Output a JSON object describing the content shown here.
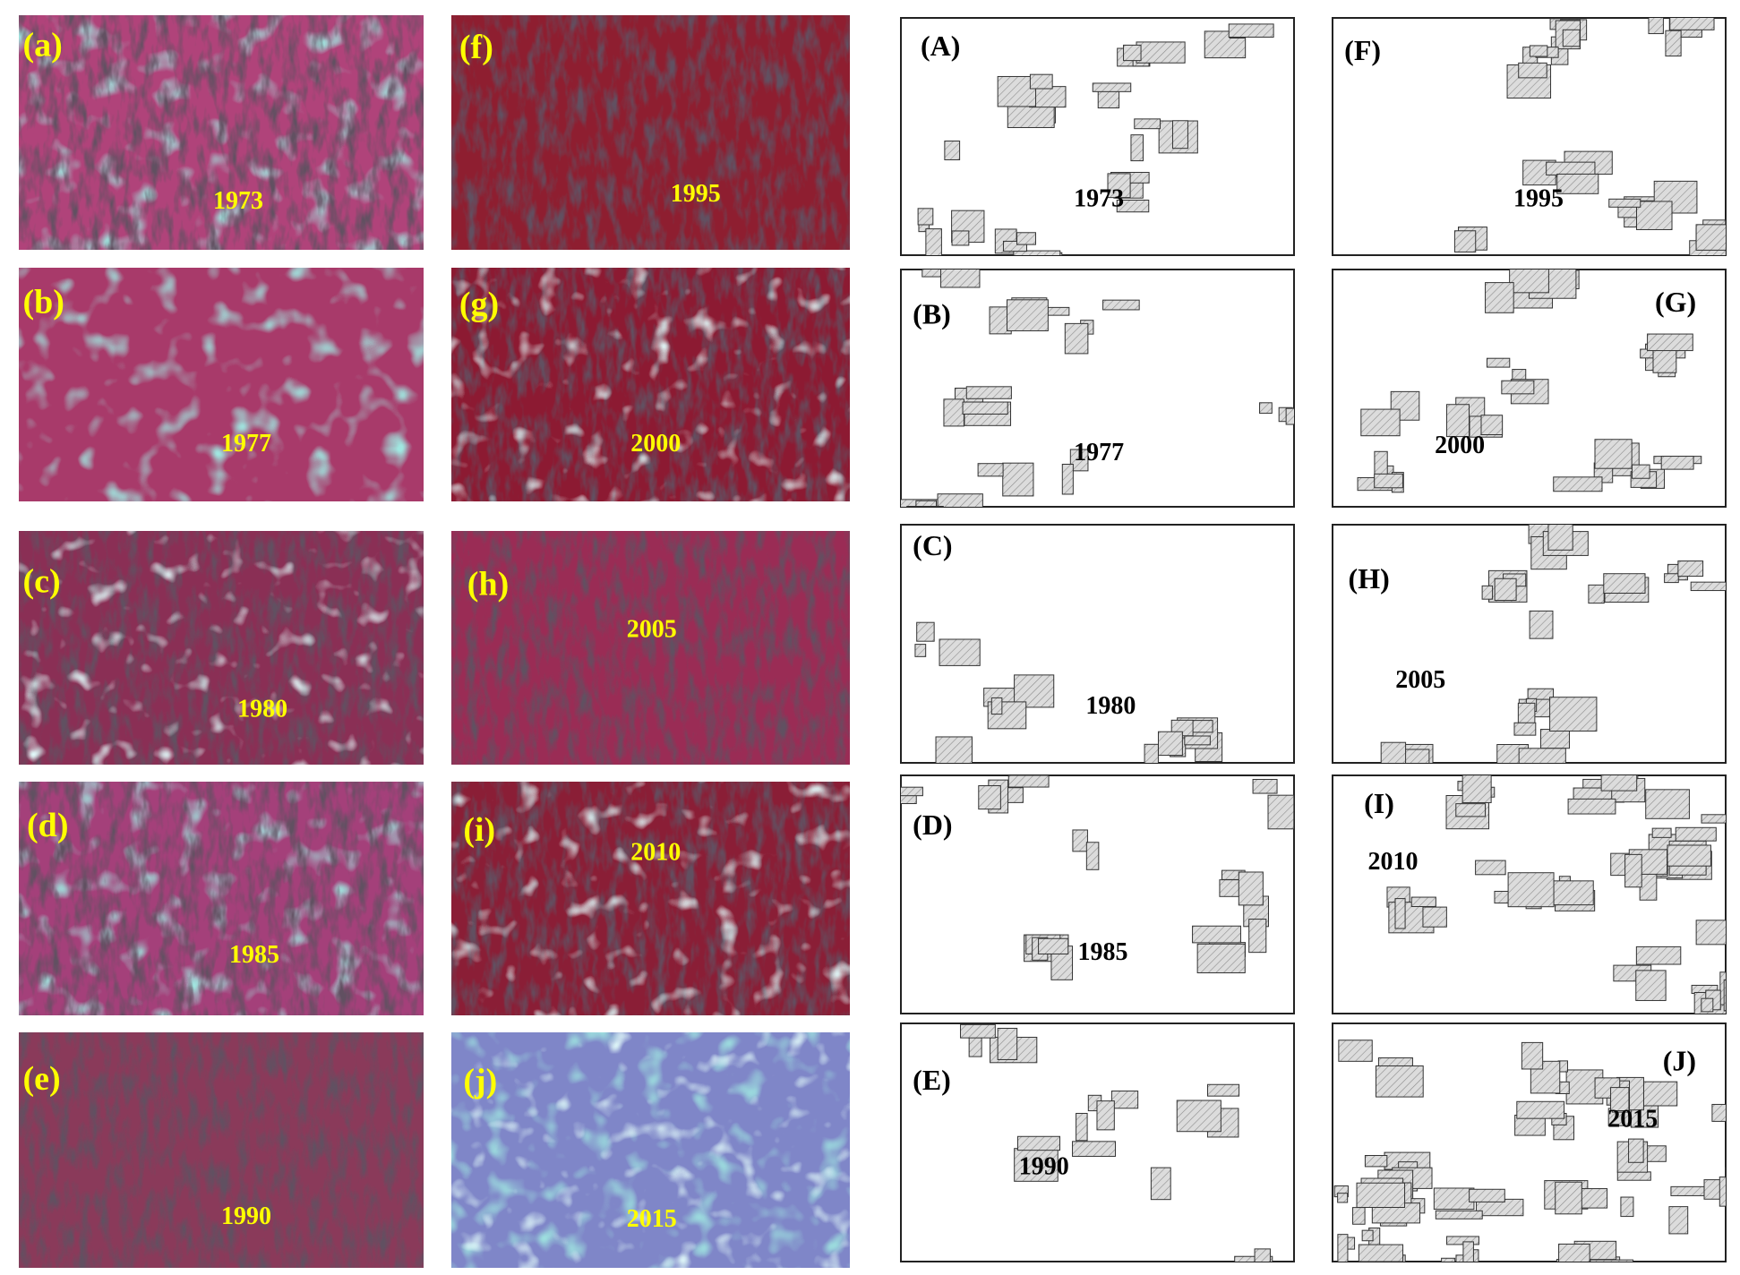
{
  "panels": [
    {
      "label": "(a)",
      "year": "1973"
    },
    {
      "label": "(b)",
      "year": "1977"
    },
    {
      "label": "(c)",
      "year": "1980"
    },
    {
      "label": "(d)",
      "year": "1985"
    },
    {
      "label": "(e)",
      "year": "1990"
    },
    {
      "label": "(f)",
      "year": "1995"
    },
    {
      "label": "(g)",
      "year": "2000"
    },
    {
      "label": "(h)",
      "year": "2005"
    },
    {
      "label": "(i)",
      "year": "2010"
    },
    {
      "label": "(j)",
      "year": "2015"
    },
    {
      "label": "(A)",
      "year": "1973"
    },
    {
      "label": "(B)",
      "year": "1977"
    },
    {
      "label": "(C)",
      "year": "1980"
    },
    {
      "label": "(D)",
      "year": "1985"
    },
    {
      "label": "(E)",
      "year": "1990"
    },
    {
      "label": "(F)",
      "year": "1995"
    },
    {
      "label": "(G)",
      "year": "2000"
    },
    {
      "label": "(H)",
      "year": "2005"
    },
    {
      "label": "(I)",
      "year": "2010"
    },
    {
      "label": "(J)",
      "year": "2015"
    }
  ]
}
